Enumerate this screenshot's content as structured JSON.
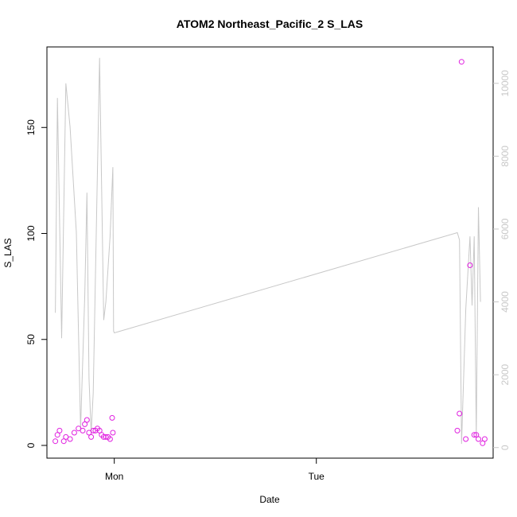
{
  "chart_data": {
    "type": "scatter",
    "title": "ATOM2 Northeast_Pacific_2 S_LAS",
    "xlabel": "Date",
    "ylabel": "S_LAS",
    "xlim": [
      "Sun 16:00",
      "Tue 21:00"
    ],
    "ylim": [
      -6,
      188
    ],
    "y2lim": [
      -290,
      11000
    ],
    "x_ticks": [
      {
        "label": "Mon",
        "at": "Mon 00:00"
      },
      {
        "label": "Tue",
        "at": "Tue 00:00"
      }
    ],
    "y_ticks": [
      0,
      50,
      100,
      150
    ],
    "y2_ticks": [
      0,
      2000,
      4000,
      6000,
      8000,
      10000
    ],
    "grid": false,
    "legend": "none",
    "colors": {
      "points": "#e020e0",
      "line": "#c8c8c8",
      "right_axis": "#c8c8c8"
    },
    "series": [
      {
        "kind": "points",
        "axis": "left",
        "x": [
          "Sun 17:00",
          "Sun 17:15",
          "Sun 17:30",
          "Sun 18:00",
          "Sun 18:15",
          "Sun 18:45",
          "Sun 19:15",
          "Sun 19:45",
          "Sun 20:15",
          "Sun 20:30",
          "Sun 20:45",
          "Sun 21:00",
          "Sun 21:15",
          "Sun 21:30",
          "Sun 21:45",
          "Sun 22:00",
          "Sun 22:15",
          "Sun 22:30",
          "Sun 22:45",
          "Sun 23:00",
          "Sun 23:15",
          "Sun 23:30",
          "Sun 23:45",
          "Sun 23:50",
          "Tue 16:45",
          "Tue 17:00",
          "Tue 17:15",
          "Tue 17:45",
          "Tue 18:15",
          "Tue 18:45",
          "Tue 19:00",
          "Tue 19:15",
          "Tue 19:45",
          "Tue 20:00"
        ],
        "y": [
          2,
          5,
          7,
          2,
          4,
          3,
          6,
          8,
          7,
          10,
          12,
          6,
          4,
          7,
          7,
          8,
          7,
          5,
          4,
          4,
          4,
          3,
          13,
          6,
          7,
          15,
          181,
          3,
          85,
          5,
          5,
          3,
          1,
          3
        ]
      },
      {
        "kind": "line",
        "axis": "right",
        "x": [
          "Sun 17:00",
          "Sun 17:15",
          "Sun 17:45",
          "Sun 18:15",
          "Sun 18:45",
          "Sun 19:30",
          "Sun 20:00",
          "Sun 20:30",
          "Sun 20:45",
          "Sun 21:00",
          "Sun 21:15",
          "Sun 21:30",
          "Sun 22:15",
          "Sun 22:45",
          "Sun 23:00",
          "Sun 23:30",
          "Sun 23:50",
          "Sun 23:55",
          "Mon 00:00",
          "Tue 16:45",
          "Tue 17:00",
          "Tue 17:15",
          "Tue 17:45",
          "Tue 18:15",
          "Tue 18:30",
          "Tue 18:45",
          "Tue 19:00",
          "Tue 19:15",
          "Tue 19:30"
        ],
        "y": [
          3700,
          9600,
          3000,
          10000,
          8800,
          5900,
          500,
          4200,
          7000,
          1900,
          400,
          1500,
          10700,
          3500,
          4000,
          5800,
          7700,
          3200,
          3150,
          5900,
          5700,
          100,
          3800,
          5800,
          3900,
          5800,
          300,
          6600,
          4000
        ]
      }
    ]
  }
}
